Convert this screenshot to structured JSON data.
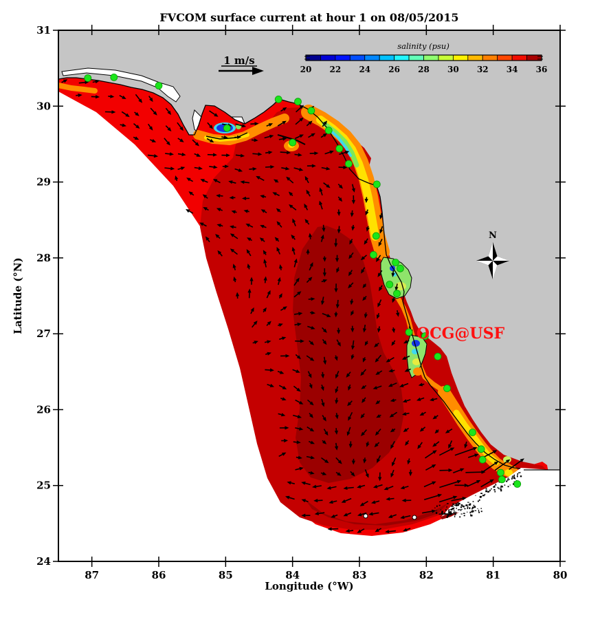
{
  "chart_data": {
    "type": "heatmap",
    "title": "FVCOM surface current at hour 1 on 08/05/2015",
    "xlabel": "Longitude (°W)",
    "ylabel": "Latitude (°N)",
    "x_axis": {
      "ticks": [
        "87",
        "86",
        "85",
        "84",
        "83",
        "82",
        "81",
        "80"
      ],
      "range_west_to_east": [
        87.5,
        80.0
      ]
    },
    "y_axis": {
      "ticks": [
        "24",
        "25",
        "26",
        "27",
        "28",
        "29",
        "30",
        "31"
      ],
      "range": [
        24,
        31
      ]
    },
    "grid": false,
    "colorbar": {
      "label": "salinity (psu)",
      "ticks": [
        "20",
        "22",
        "24",
        "26",
        "28",
        "30",
        "32",
        "34",
        "36"
      ],
      "range": [
        20,
        36
      ],
      "segment_colors": [
        "#00008F",
        "#0000D6",
        "#0013FF",
        "#004DFF",
        "#0087FF",
        "#00C1FF",
        "#22F6FF",
        "#63FFB8",
        "#90FF70",
        "#C8FF37",
        "#FFF200",
        "#FFB900",
        "#FF8000",
        "#FF4700",
        "#F20D00",
        "#A80000"
      ]
    },
    "scale_vector": {
      "label": "1 m/s"
    },
    "compass_label": "N",
    "site_label": {
      "text": "OCG@USF",
      "color": "#FF1010",
      "lon": 81.5,
      "lat": 27.03
    },
    "field_summary": "Shelf-wide surface salinity 35-36 psu (dark red); fresher 20-32 psu water fringes the coast and bays (Apalachicola Bay, Big Bend, Tampa Bay, Charlotte Harbor, Ten Thousand Islands, Florida Keys)",
    "vector_summary": "Black arrows show surface current on a ~0.2 degree grid; strongest flow northeastward along the Florida Keys, weaker variable flow over the shelf",
    "stations": {
      "marker_color": "#1BE51B",
      "points_lon_lat": [
        [
          87.06,
          30.37
        ],
        [
          86.67,
          30.38
        ],
        [
          86.0,
          30.27
        ],
        [
          84.98,
          29.71
        ],
        [
          84.21,
          30.09
        ],
        [
          83.92,
          30.06
        ],
        [
          83.72,
          29.94
        ],
        [
          84.0,
          29.52
        ],
        [
          83.46,
          29.68
        ],
        [
          83.3,
          29.44
        ],
        [
          83.16,
          29.24
        ],
        [
          82.74,
          28.97
        ],
        [
          82.75,
          28.29
        ],
        [
          82.79,
          28.04
        ],
        [
          82.46,
          27.94
        ],
        [
          82.39,
          27.86
        ],
        [
          82.55,
          27.65
        ],
        [
          82.44,
          27.53
        ],
        [
          82.26,
          27.02
        ],
        [
          82.02,
          26.97
        ],
        [
          81.83,
          26.7
        ],
        [
          81.69,
          26.28
        ],
        [
          81.31,
          25.7
        ],
        [
          81.18,
          25.48
        ],
        [
          81.16,
          25.34
        ],
        [
          80.89,
          25.17
        ],
        [
          80.87,
          25.08
        ],
        [
          80.64,
          25.02
        ]
      ]
    },
    "colors": {
      "land": "#C5C5C5",
      "unmodeled_ocean": "#FFFFFF",
      "shelf_salinity_shades": [
        "#F20000",
        "#C40000",
        "#9B0000"
      ],
      "coast_fringe": [
        "#FF8C00",
        "#FFE100",
        "#7FE857",
        "#3FD9F0",
        "#1438E8"
      ],
      "coastline": "#000000",
      "vectors": "#000000"
    }
  }
}
